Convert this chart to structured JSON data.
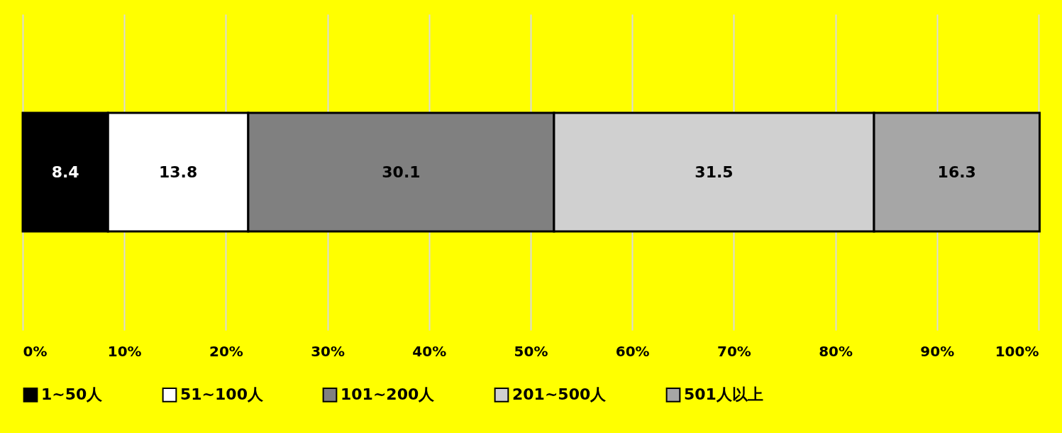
{
  "chart_data": {
    "type": "bar",
    "orientation": "horizontal",
    "stacked": true,
    "categories": [
      null
    ],
    "series": [
      {
        "name": "1~50人",
        "color": "#000000",
        "values": [
          8.4
        ]
      },
      {
        "name": "51~100人",
        "color": "#ffffff",
        "values": [
          13.8
        ]
      },
      {
        "name": "101~200人",
        "color": "#808080",
        "values": [
          30.1
        ]
      },
      {
        "name": "201~500人",
        "color": "#d0d0d0",
        "values": [
          31.5
        ]
      },
      {
        "name": "501人以上",
        "color": "#a6a6a6",
        "values": [
          16.3
        ]
      }
    ],
    "xlim": [
      0,
      100
    ],
    "xticks": [
      {
        "value": 0,
        "label": "0%"
      },
      {
        "value": 10,
        "label": "10%"
      },
      {
        "value": 20,
        "label": "20%"
      },
      {
        "value": 30,
        "label": "30%"
      },
      {
        "value": 40,
        "label": "40%"
      },
      {
        "value": 50,
        "label": "50%"
      },
      {
        "value": 60,
        "label": "60%"
      },
      {
        "value": 70,
        "label": "70%"
      },
      {
        "value": 80,
        "label": "80%"
      },
      {
        "value": 90,
        "label": "90%"
      },
      {
        "value": 100,
        "label": "100%"
      }
    ],
    "grid": "x",
    "legend": "bottom",
    "data_labels": true,
    "tick_labels": "x"
  }
}
